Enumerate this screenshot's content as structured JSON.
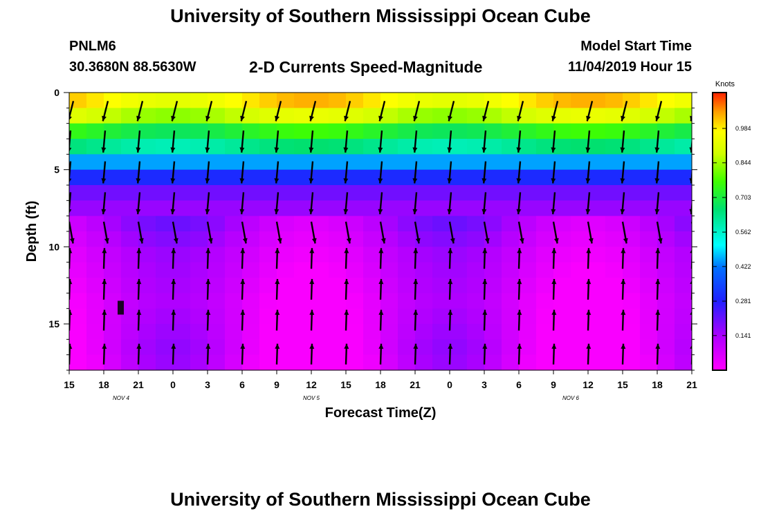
{
  "header": {
    "title": "University of Southern Mississippi Ocean Cube",
    "station_id": "PNLM6",
    "station_coords": "30.3680N 88.5630W",
    "plot_title": "2-D Currents Speed-Magnitude",
    "start_label": "Model Start Time",
    "start_value": "11/04/2019 Hour 15"
  },
  "footer": {
    "title": "University of Southern Mississippi Ocean Cube"
  },
  "colors": {
    "scale_low": "#ff00ff",
    "scale_high": "#ff2000",
    "arrow": "#000000"
  },
  "chart_data": {
    "type": "heatmap",
    "title": "2-D Currents Speed-Magnitude",
    "xlabel": "Forecast Time(Z)",
    "ylabel": "Depth (ft)",
    "x_ticks": [
      "15",
      "18",
      "21",
      "0",
      "3",
      "6",
      "9",
      "12",
      "15",
      "18",
      "21",
      "0",
      "3",
      "6",
      "9",
      "12",
      "15",
      "18",
      "21"
    ],
    "x_range_hours": [
      0,
      54
    ],
    "date_labels": [
      {
        "text": "NOV 4",
        "hour": 4.5
      },
      {
        "text": "NOV 5",
        "hour": 21
      },
      {
        "text": "NOV 6",
        "hour": 43.5
      }
    ],
    "y_ticks": [
      0,
      5,
      10,
      15
    ],
    "ylim": [
      0,
      18
    ],
    "colorbar": {
      "label": "Knots",
      "ticks": [
        "0.984",
        "0.844",
        "0.703",
        "0.562",
        "0.422",
        "0.281",
        "0.141"
      ],
      "range": [
        0,
        1.13
      ]
    },
    "depth_profile_speed_knots": {
      "depths_ft": [
        0.5,
        1.5,
        2.5,
        3.5,
        4.5,
        5.5,
        6.5,
        7.5,
        8.5,
        9.5,
        10.5,
        11.5,
        12.5,
        13.5,
        14.5,
        15.5,
        16.5,
        17.5
      ],
      "speeds": [
        0.98,
        0.88,
        0.72,
        0.62,
        0.45,
        0.3,
        0.2,
        0.16,
        0.13,
        0.11,
        0.09,
        0.08,
        0.07,
        0.06,
        0.06,
        0.06,
        0.06,
        0.05
      ]
    },
    "arrow_times_hours": [
      0,
      3,
      6,
      9,
      12,
      15,
      18,
      21,
      24,
      27,
      30,
      33,
      36,
      39,
      42,
      45,
      48,
      51,
      54
    ],
    "arrow_depths_ft": [
      1,
      3,
      5,
      7,
      9,
      10.8,
      12.8,
      14.8,
      17
    ],
    "arrow_special": [
      {
        "hour": 0,
        "depth": 12,
        "dir_deg": 60
      },
      {
        "hour": 12,
        "depth": 10,
        "dir_deg": 30
      },
      {
        "hour": 18,
        "depth": 10,
        "dir_deg": 80
      },
      {
        "hour": 21,
        "depth": 10.5,
        "dir_deg": 140
      },
      {
        "hour": 24,
        "depth": 12,
        "dir_deg": 30
      },
      {
        "hour": 27,
        "depth": 12.5,
        "dir_deg": 130
      },
      {
        "hour": 30,
        "depth": 10,
        "dir_deg": 80
      },
      {
        "hour": 39,
        "depth": 10.3,
        "dir_deg": 115
      },
      {
        "hour": 42,
        "depth": 10,
        "dir_deg": 35
      },
      {
        "hour": 45,
        "depth": 10.3,
        "dir_deg": 125
      }
    ]
  }
}
